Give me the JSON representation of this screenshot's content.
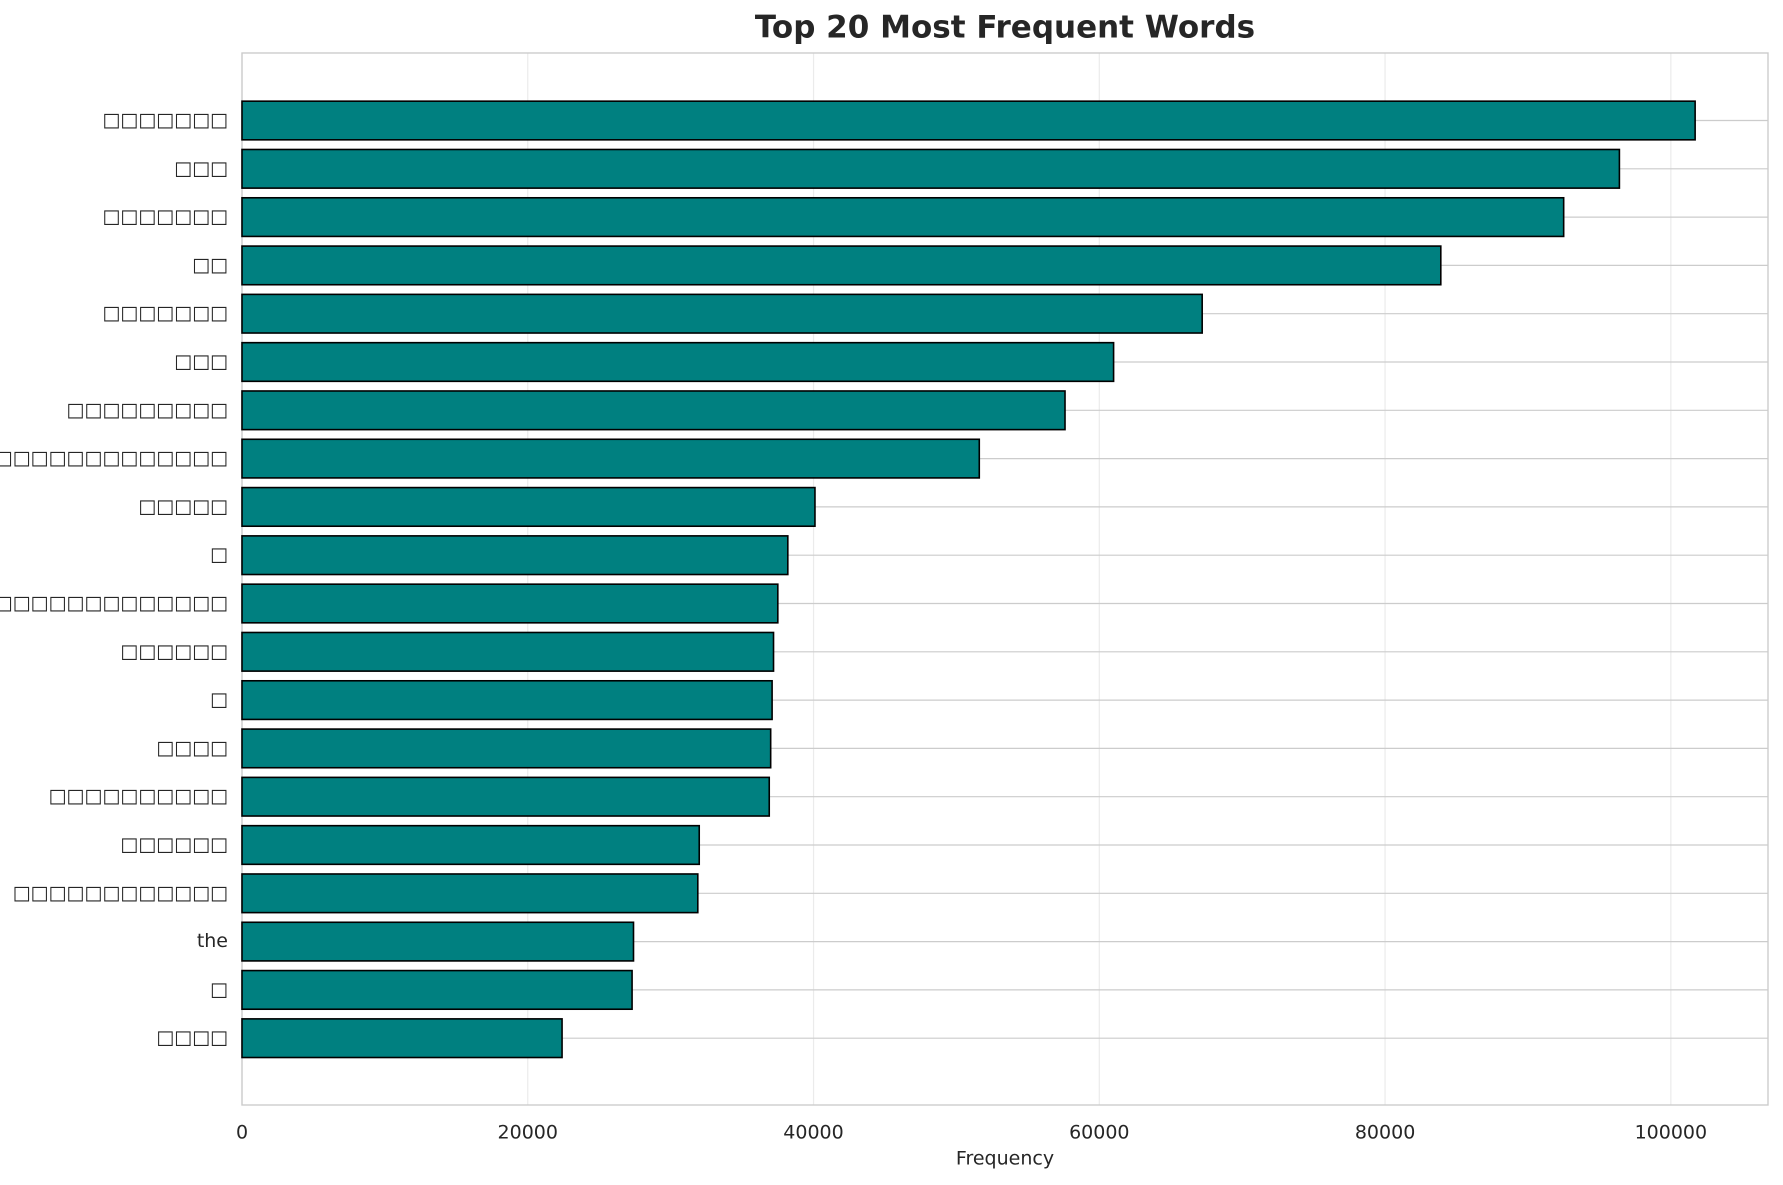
{
  "chart_data": {
    "type": "barh",
    "title": "Top 20 Most Frequent Words",
    "xlabel": "Frequency",
    "categories": [
      "□□□□□□□",
      "□□□",
      "□□□□□□□",
      "□□",
      "□□□□□□□",
      "□□□",
      "□□□□□□□□□",
      "□□□□□□□□□□□□□□",
      "□□□□□",
      "□",
      "□□□□□□□□□□□□□□□□□",
      "□□□□□□",
      "□",
      "□□□□",
      "□□□□□□□□□□",
      "□□□□□□",
      "□□□□□□□□□□□□",
      "the",
      "□",
      "□□□□"
    ],
    "values": [
      101700,
      96400,
      92500,
      83900,
      67200,
      61000,
      57600,
      51600,
      40100,
      38200,
      37500,
      37200,
      37100,
      37000,
      36900,
      32000,
      31900,
      27400,
      27300,
      22400
    ],
    "color": "#008080",
    "edgecolor": "#000000",
    "xlim": [
      0,
      106800
    ],
    "xticks": [
      0,
      20000,
      40000,
      60000,
      80000,
      100000
    ],
    "grid": true
  }
}
